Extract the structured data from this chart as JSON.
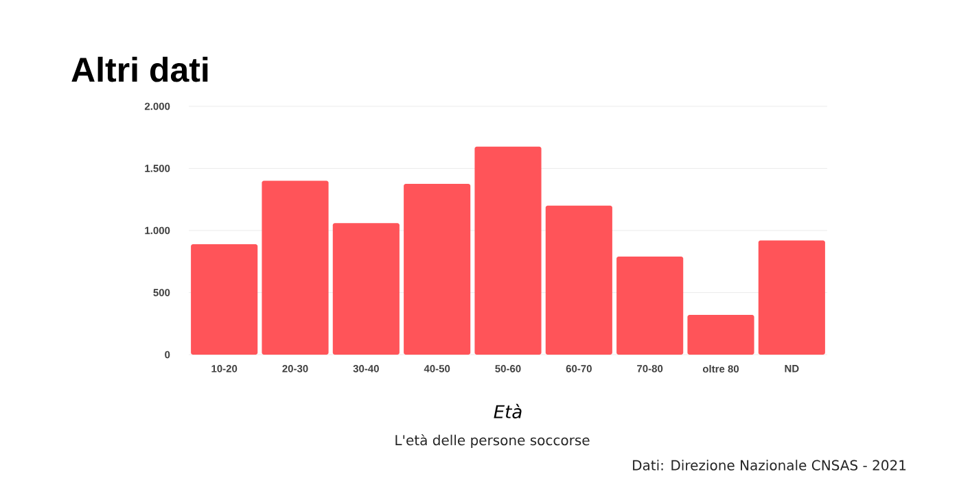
{
  "chart_data": {
    "type": "bar",
    "title": "Altri dati",
    "xlabel": "Età",
    "categories": [
      "10-20",
      "20-30",
      "30-40",
      "40-50",
      "50-60",
      "60-70",
      "70-80",
      "oltre 80",
      "ND"
    ],
    "values": [
      890,
      1400,
      1060,
      1375,
      1675,
      1200,
      790,
      320,
      920
    ],
    "color": "#ff5459",
    "ylim": [
      0,
      2000
    ],
    "yticks": [
      0,
      500,
      {
        "value": 1000,
        "label": "1.000"
      },
      {
        "value": 1500,
        "label": "1.500"
      },
      {
        "value": 2000,
        "label": "2.000"
      }
    ],
    "grid": "y",
    "annotations": [
      "L'età delle persone soccorse",
      "Dati: Direzione Nazionale CNSAS - 2021"
    ]
  }
}
